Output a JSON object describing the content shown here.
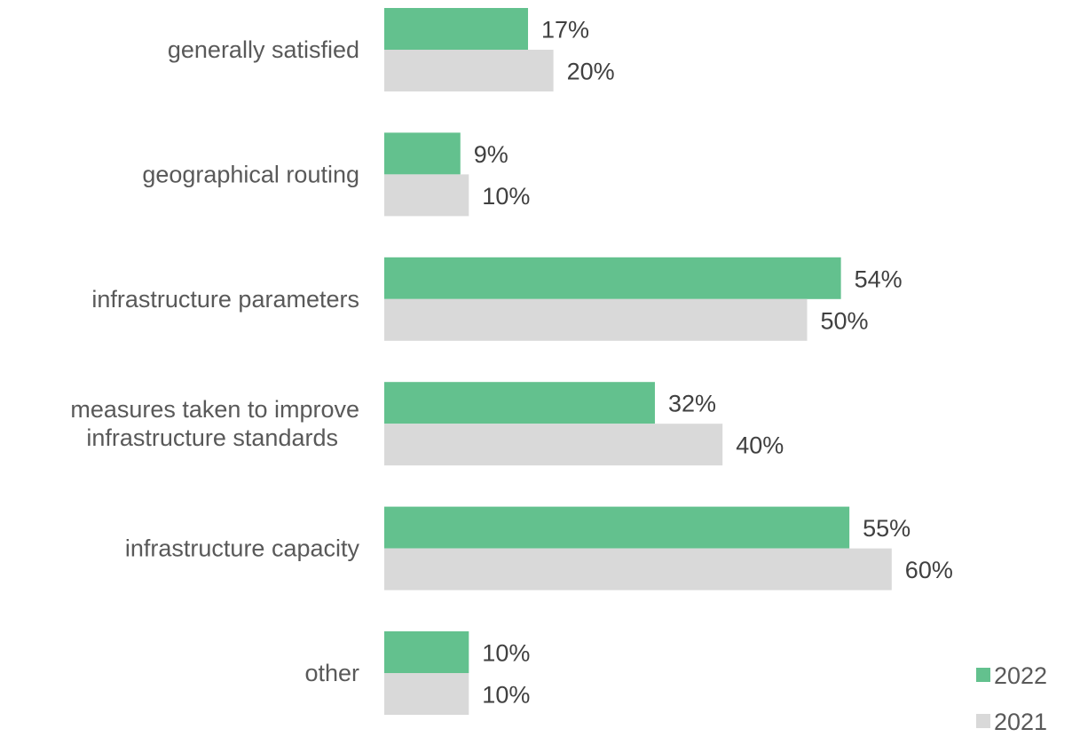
{
  "chart_data": {
    "type": "bar",
    "orientation": "horizontal",
    "categories": [
      [
        "generally satisfied"
      ],
      [
        "geographical routing"
      ],
      [
        "infrastructure parameters"
      ],
      [
        "measures taken to improve",
        "infrastructure standards"
      ],
      [
        "infrastructure capacity"
      ],
      [
        "other"
      ]
    ],
    "series": [
      {
        "name": "2022",
        "color": "#63C18E",
        "values": [
          17,
          9,
          54,
          32,
          55,
          10
        ],
        "labels": [
          "17%",
          "9%",
          "54%",
          "32%",
          "55%",
          "10%"
        ]
      },
      {
        "name": "2021",
        "color": "#D9D9D9",
        "values": [
          20,
          10,
          50,
          40,
          60,
          10
        ],
        "labels": [
          "20%",
          "10%",
          "50%",
          "40%",
          "60%",
          "10%"
        ]
      }
    ],
    "xlim": [
      0,
      60
    ],
    "grid": false,
    "legend_position": "bottom-right"
  }
}
